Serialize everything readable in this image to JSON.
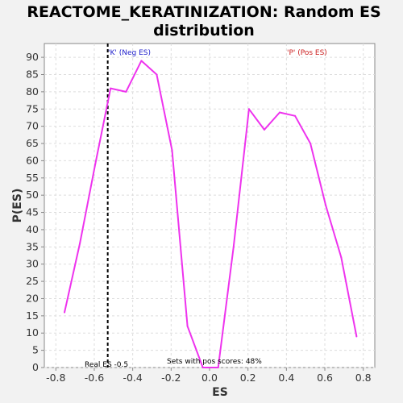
{
  "chart_data": {
    "type": "line",
    "title_line1": "REACTOME_KERATINIZATION: Random ES",
    "title_line2": "distribution",
    "xlabel": "ES",
    "ylabel": "P(ES)",
    "xlim": [
      -0.86,
      0.86
    ],
    "ylim": [
      0,
      94
    ],
    "xticks": [
      -0.8,
      -0.6,
      -0.4,
      -0.2,
      0.0,
      0.2,
      0.4,
      0.6,
      0.8
    ],
    "xtick_labels": [
      "-0.8",
      "-0.6",
      "-0.4",
      "-0.2",
      "0.0",
      "0.2",
      "0.4",
      "0.6",
      "0.8"
    ],
    "yticks": [
      0,
      5,
      10,
      15,
      20,
      25,
      30,
      35,
      40,
      45,
      50,
      55,
      60,
      65,
      70,
      75,
      80,
      85,
      90
    ],
    "grid": true,
    "series": [
      {
        "color": "#ee33ee",
        "x": [
          -0.755,
          -0.675,
          -0.595,
          -0.515,
          -0.435,
          -0.355,
          -0.275,
          -0.195,
          -0.115,
          -0.035,
          0.045,
          0.125,
          0.205,
          0.285,
          0.365,
          0.445,
          0.525,
          0.605,
          0.685,
          0.765
        ],
        "y": [
          16,
          36,
          59,
          81,
          80,
          89,
          85,
          63,
          12,
          0,
          0,
          35,
          75,
          69,
          74,
          73,
          65,
          47,
          32,
          9
        ]
      }
    ],
    "real_es": -0.53,
    "annotations": {
      "neg_label": "'K' (Neg ES)",
      "pos_label": "'P' (Pos ES)",
      "real_es_label": "Real ES -0.5",
      "pos_scores_label": "Sets with pos scores: 48%"
    },
    "colors": {
      "neg": "#2222cc",
      "pos": "#cc2222",
      "line": "#ee33ee",
      "grid": "#dddddd"
    }
  }
}
